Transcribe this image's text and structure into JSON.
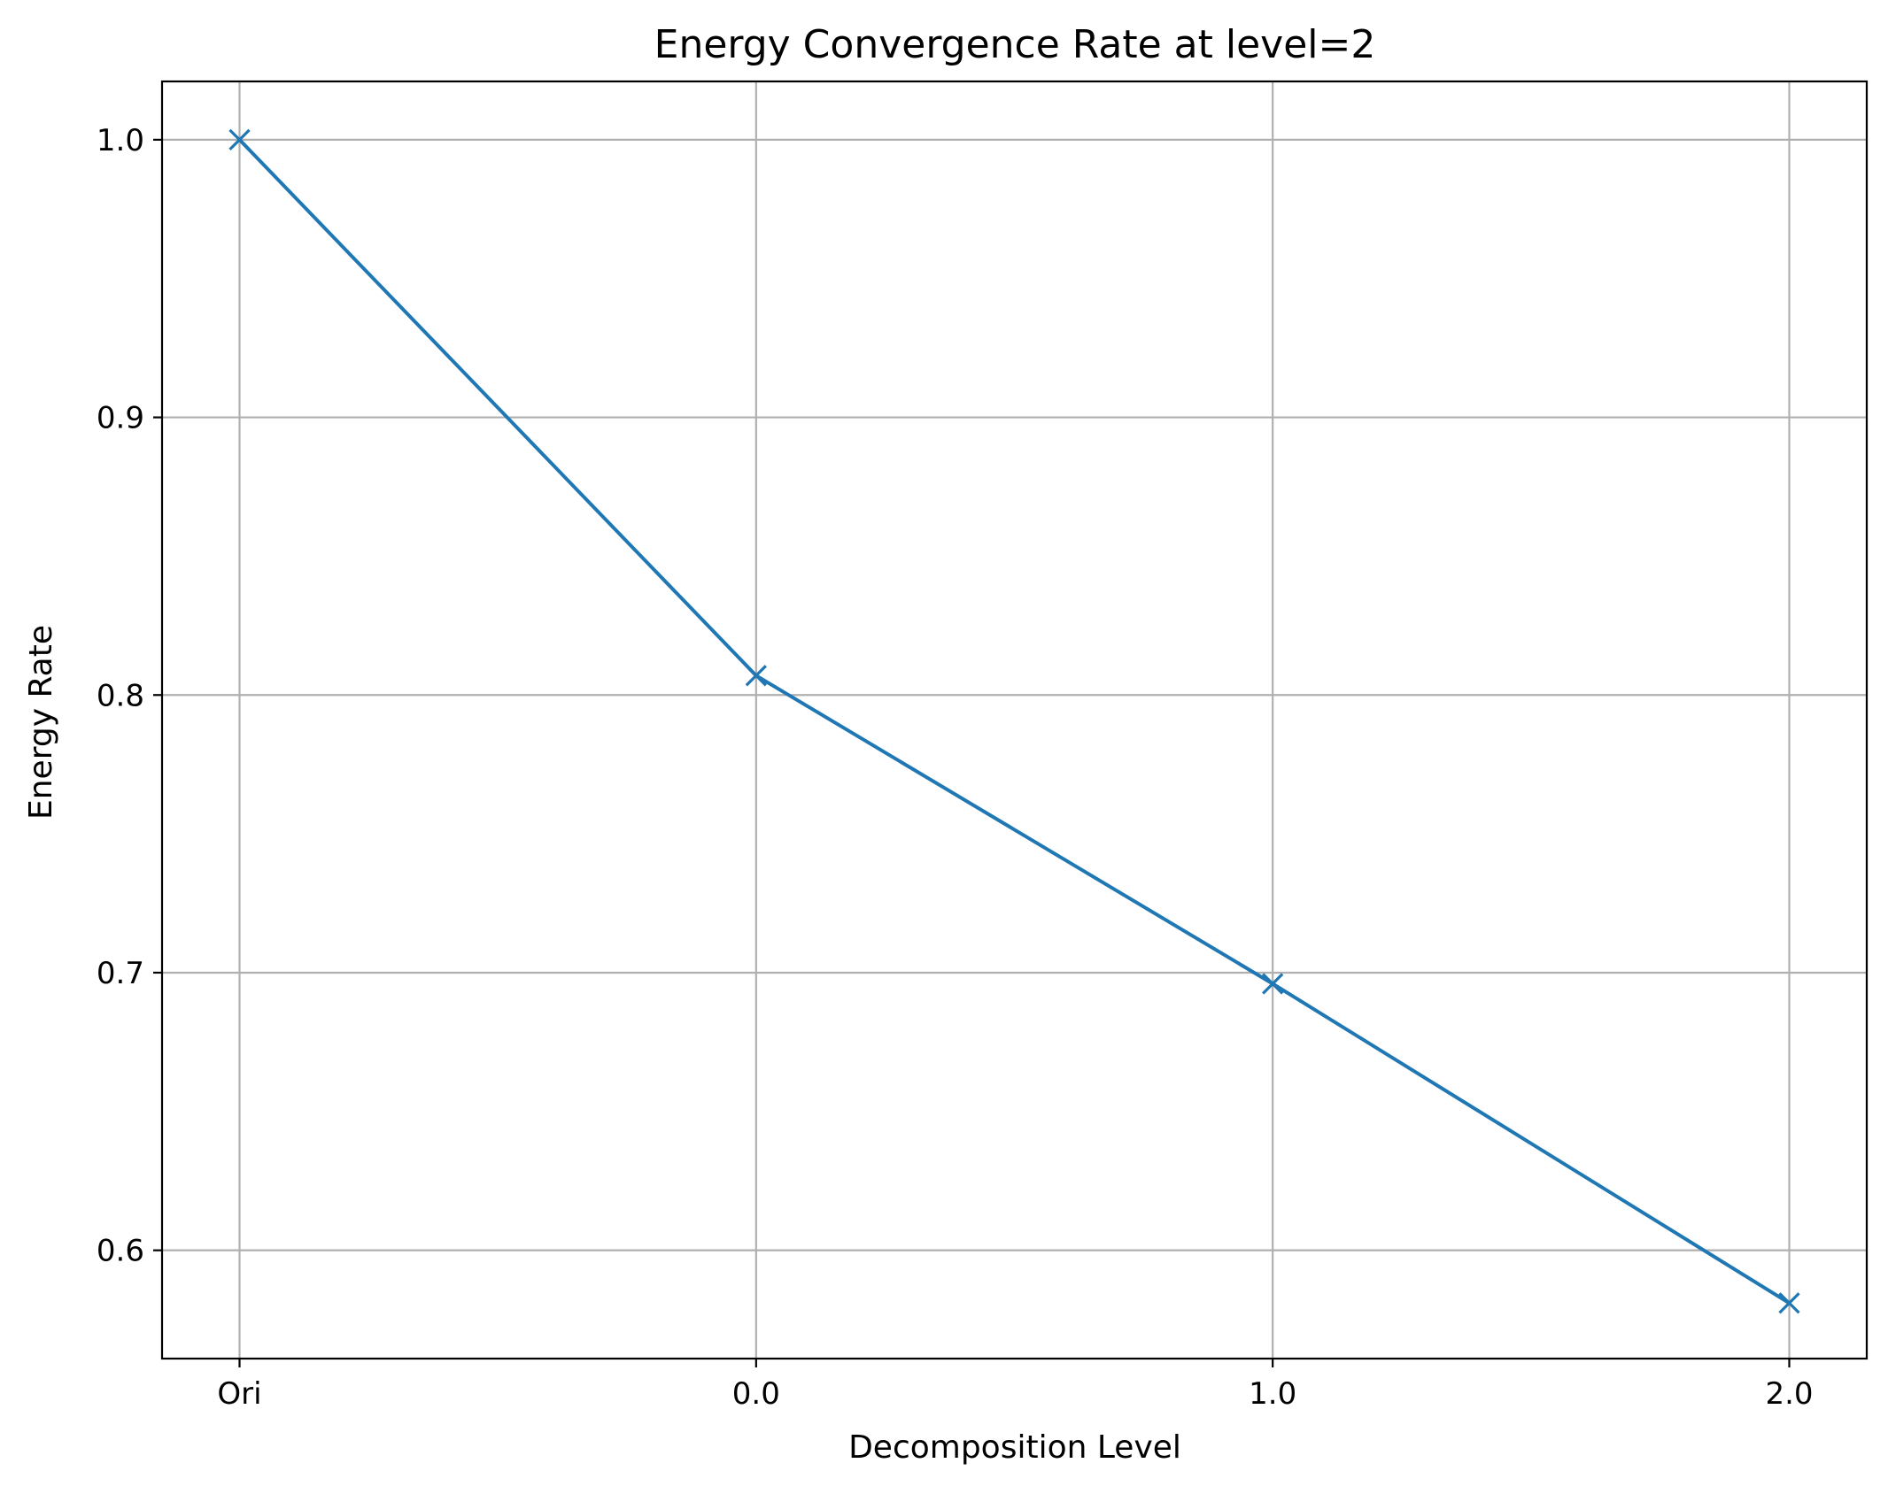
{
  "chart_data": {
    "type": "line",
    "title": "Energy Convergence Rate at level=2",
    "xlabel": "Decomposition Level",
    "ylabel": "Energy Rate",
    "categories": [
      "Ori",
      "0.0",
      "1.0",
      "2.0"
    ],
    "series": [
      {
        "values": [
          1.0,
          0.807,
          0.696,
          0.581
        ],
        "color": "#1f77b4",
        "marker": "x"
      }
    ],
    "yticks": [
      "0.6",
      "0.7",
      "0.8",
      "0.9",
      "1.0"
    ],
    "ytick_values": [
      0.6,
      0.7,
      0.8,
      0.9,
      1.0
    ],
    "ylim": [
      0.561,
      1.021
    ],
    "xlim": [
      -0.15,
      3.15
    ],
    "grid": true,
    "legend": "none"
  }
}
